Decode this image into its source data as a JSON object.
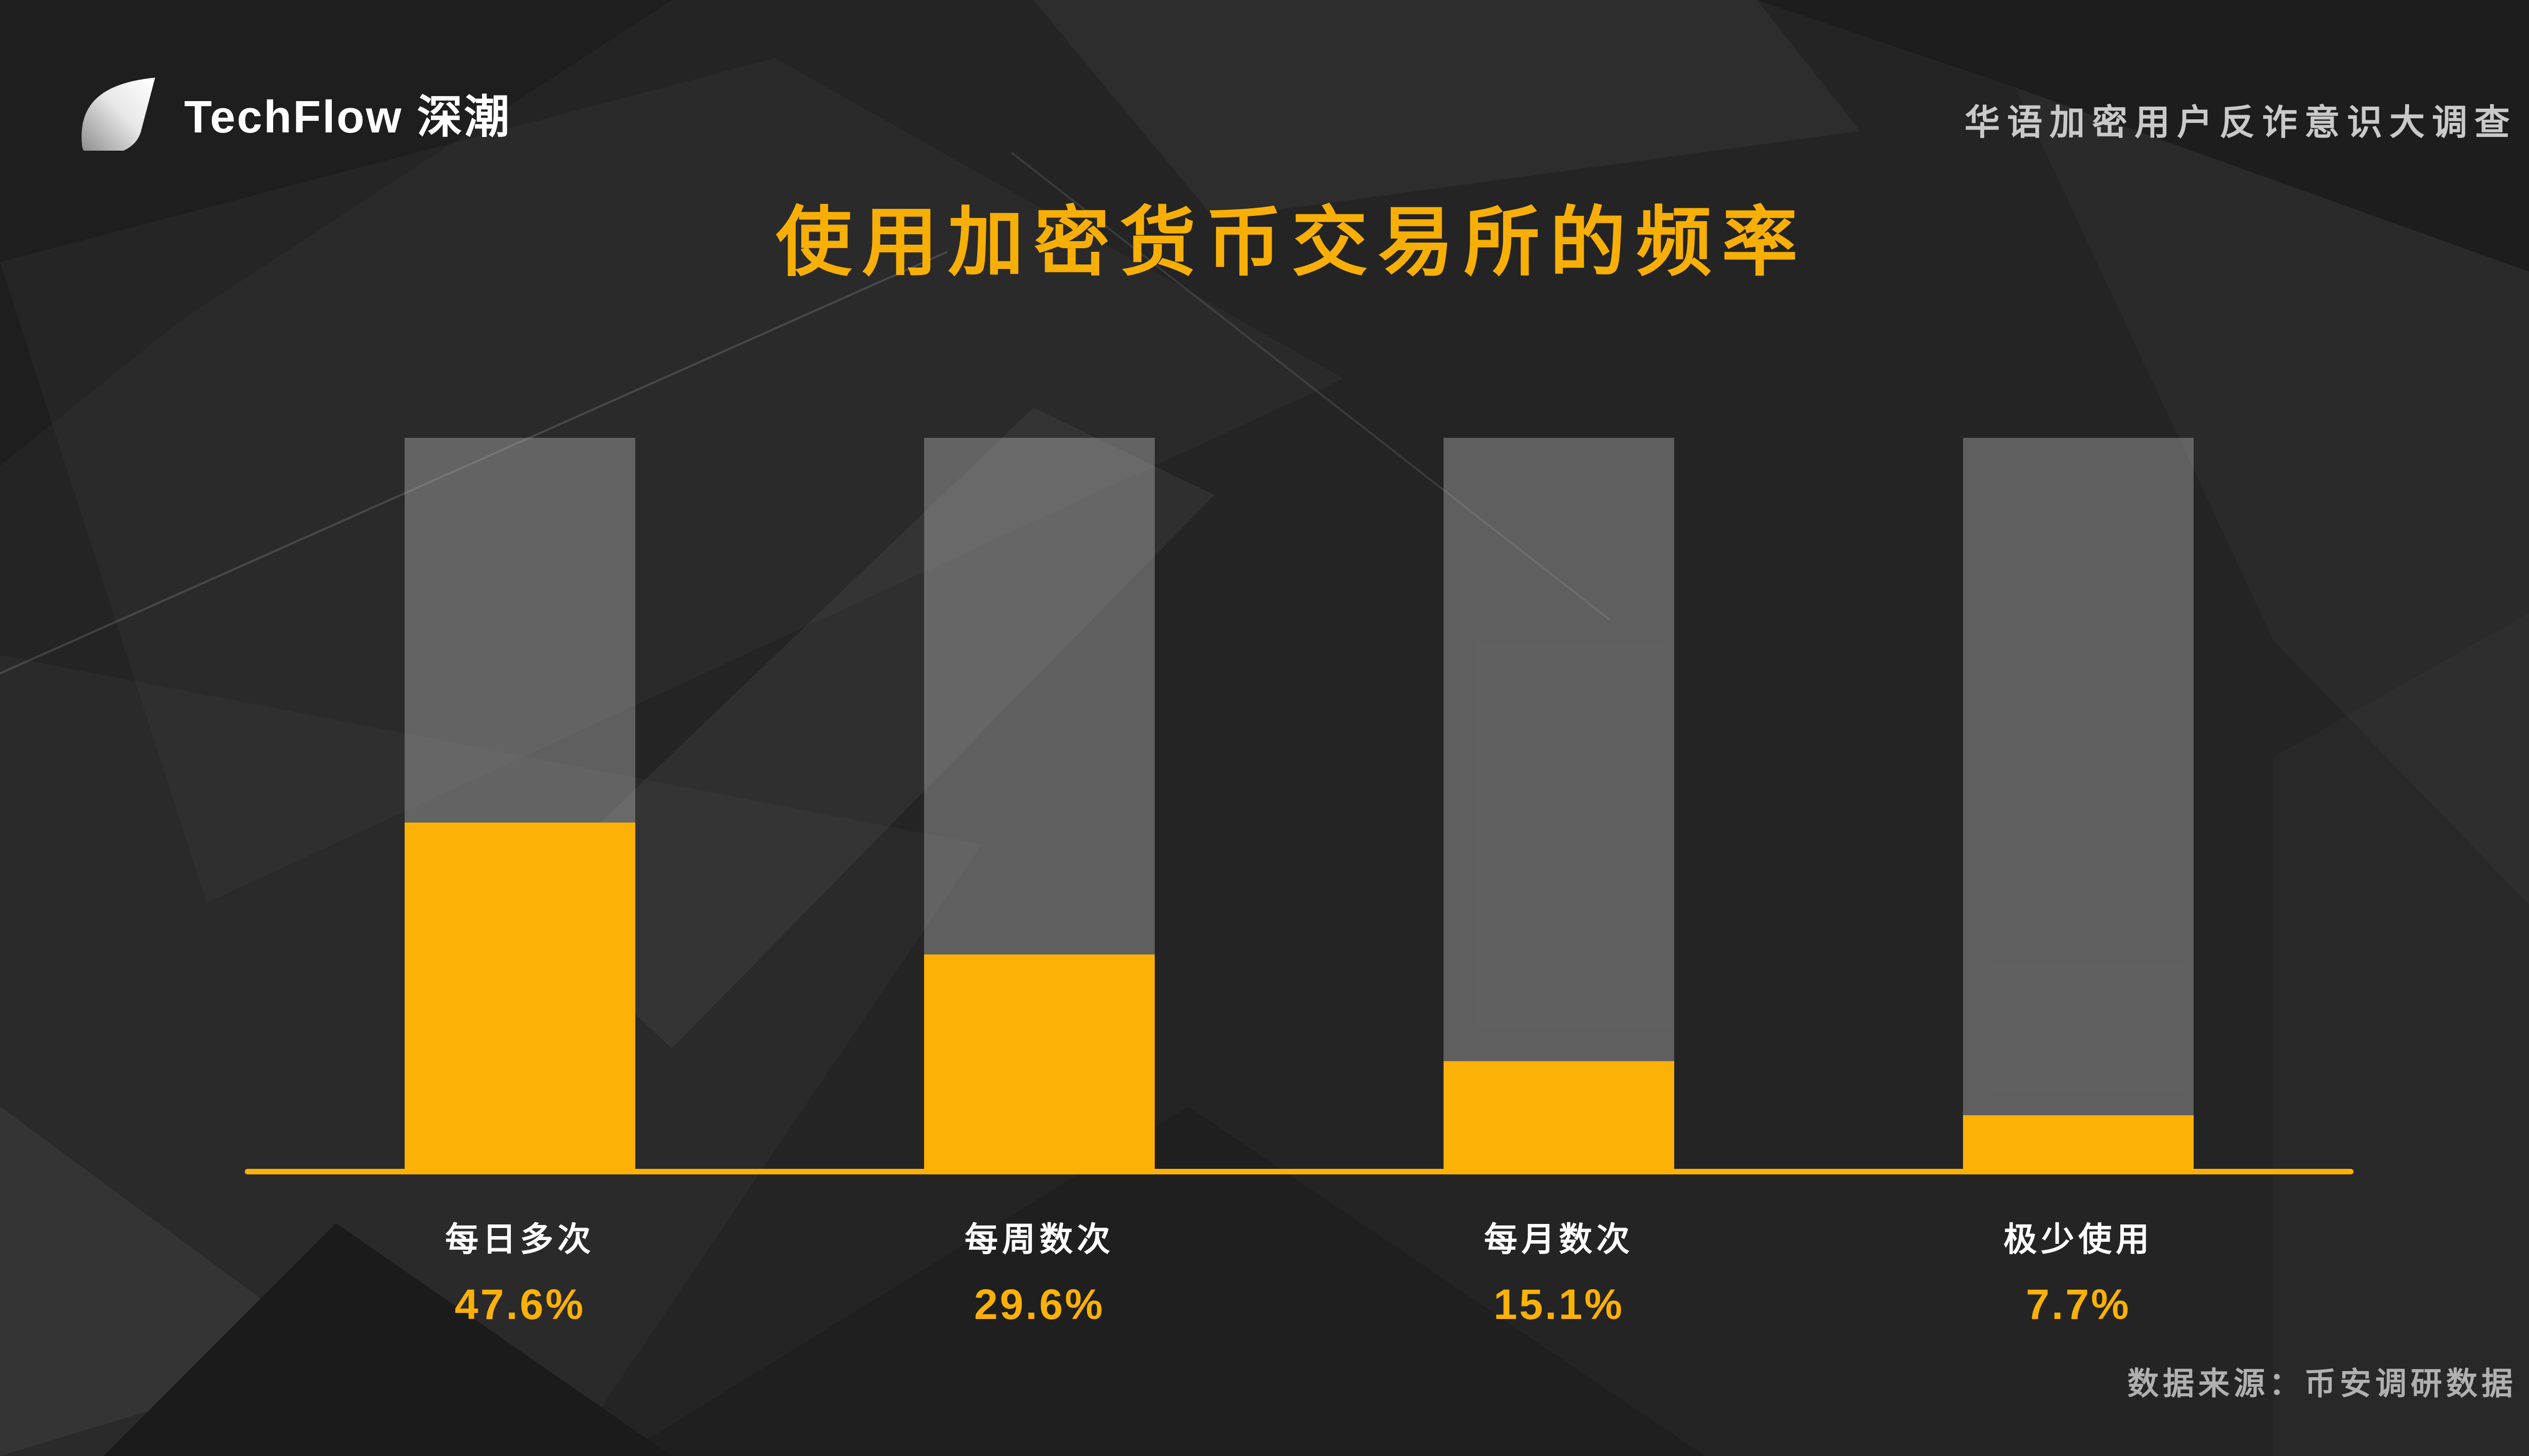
{
  "brand": {
    "logo_text": "TechFlow 深潮"
  },
  "header": {
    "survey_title": "华语加密用户反诈意识大调查"
  },
  "chart_data": {
    "type": "bar",
    "title": "使用加密货币交易所的频率",
    "categories": [
      "每日多次",
      "每周数次",
      "每月数次",
      "极少使用"
    ],
    "values": [
      47.6,
      29.6,
      15.1,
      7.7
    ],
    "value_labels": [
      "47.6%",
      "29.6%",
      "15.1%",
      "7.7%"
    ],
    "ylim": [
      0,
      100
    ],
    "grid": false,
    "legend": "none",
    "orientation": "vertical",
    "track_full_height_represents": 100
  },
  "footer": {
    "source": "数据来源：币安调研数据"
  },
  "colors": {
    "accent_yellow": "#fbb105",
    "title_yellow": "#f8af05",
    "bar_track_gray": "#5d5d5d",
    "background": "#242424",
    "category_label": "#ffffff",
    "muted_text": "#b0b0b0"
  }
}
